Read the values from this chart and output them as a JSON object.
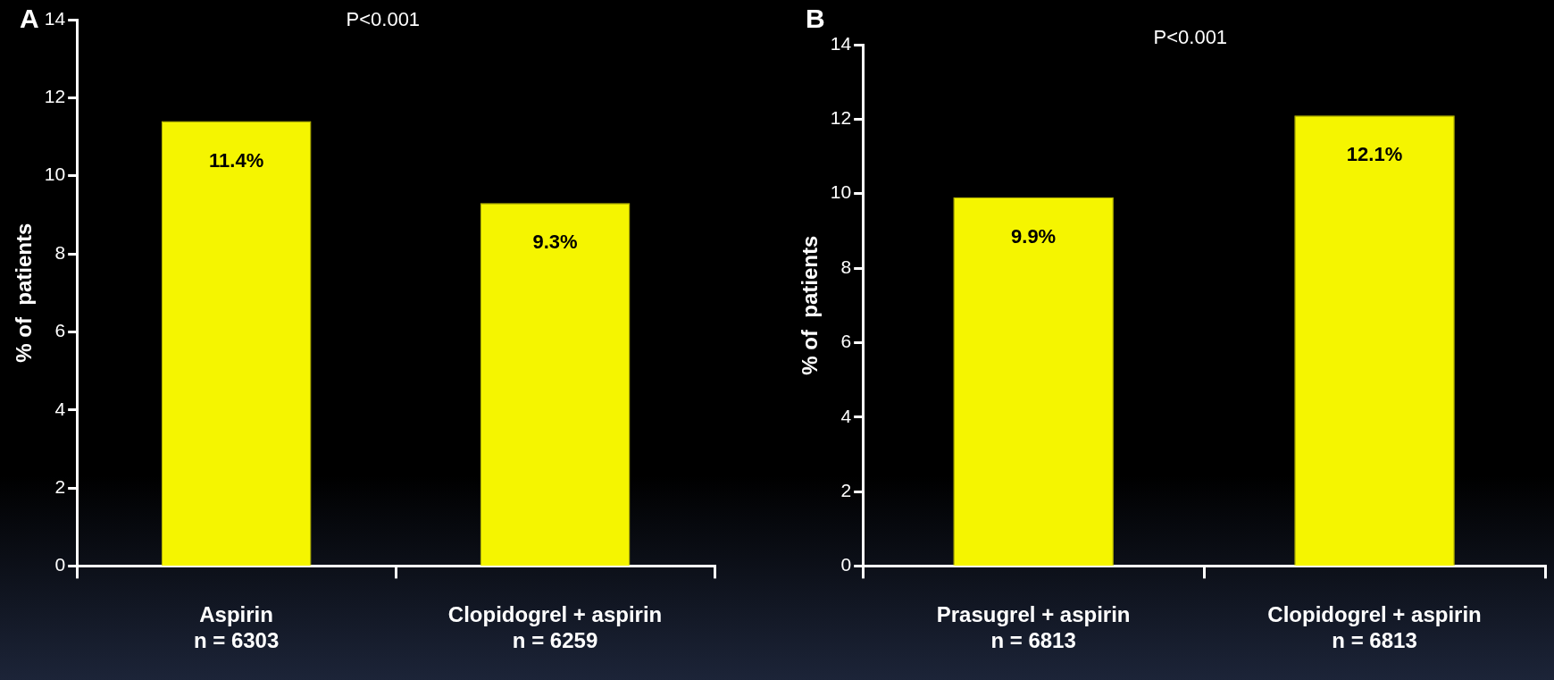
{
  "chart_data": [
    {
      "type": "bar",
      "ylabel": "% of  patients",
      "categories": [
        "Aspirin\nn = 6303",
        "Clopidogrel + aspirin\nn = 6259"
      ],
      "values": [
        11.4,
        9.3
      ],
      "value_labels": [
        "11.4%",
        "9.3%"
      ],
      "color": "#f5f500",
      "ylim": [
        0,
        14
      ],
      "yticks": [
        0,
        2,
        4,
        6,
        8,
        10,
        12,
        14
      ],
      "grid": false,
      "legend": false,
      "annotations": [
        "A",
        "P<0.001"
      ]
    },
    {
      "type": "bar",
      "ylabel": "% of  patients",
      "categories": [
        "Prasugrel + aspirin\nn = 6813",
        "Clopidogrel + aspirin\nn = 6813"
      ],
      "values": [
        9.9,
        12.1
      ],
      "value_labels": [
        "9.9%",
        "12.1%"
      ],
      "color": "#f5f500",
      "ylim": [
        0,
        14
      ],
      "yticks": [
        0,
        2,
        4,
        6,
        8,
        10,
        12,
        14
      ],
      "grid": false,
      "legend": false,
      "annotations": [
        "B",
        "P<0.001"
      ]
    }
  ]
}
